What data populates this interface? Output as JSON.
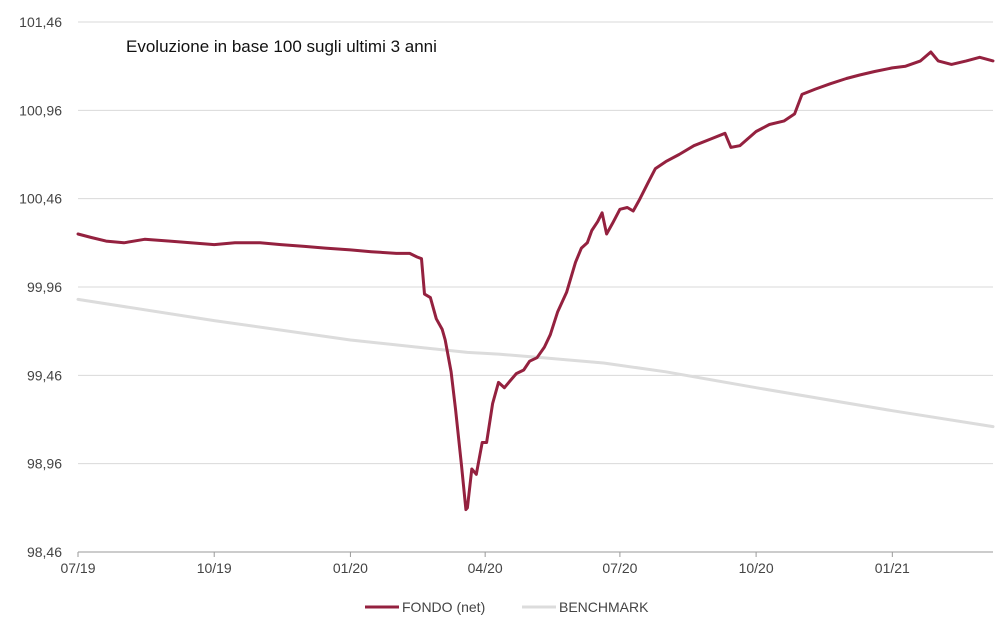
{
  "chart_data": {
    "type": "line",
    "title": "Evoluzione in base 100 sugli ultimi 3 anni",
    "xlabel": "",
    "ylabel": "",
    "x_ticks": [
      "07/19",
      "10/19",
      "01/20",
      "04/20",
      "07/20",
      "10/20",
      "01/21"
    ],
    "y_ticks": [
      "101,46",
      "100,96",
      "100,46",
      "99,96",
      "99,46",
      "98,96",
      "98,46"
    ],
    "y_tick_values": [
      101.46,
      100.96,
      100.46,
      99.96,
      99.46,
      98.96,
      98.46
    ],
    "ylim": [
      98.46,
      101.46
    ],
    "xlim": [
      "2019-07-01",
      "2021-03-10"
    ],
    "grid": "horizontal",
    "legend_position": "bottom-center",
    "series": [
      {
        "name": "FONDO (net)",
        "color": "#94213f",
        "points": [
          [
            "2019-07-01",
            100.26
          ],
          [
            "2019-07-10",
            100.24
          ],
          [
            "2019-07-20",
            100.22
          ],
          [
            "2019-08-01",
            100.21
          ],
          [
            "2019-08-15",
            100.23
          ],
          [
            "2019-09-01",
            100.22
          ],
          [
            "2019-09-15",
            100.21
          ],
          [
            "2019-10-01",
            100.2
          ],
          [
            "2019-10-15",
            100.21
          ],
          [
            "2019-11-01",
            100.21
          ],
          [
            "2019-11-15",
            100.2
          ],
          [
            "2019-12-01",
            100.19
          ],
          [
            "2019-12-15",
            100.18
          ],
          [
            "2020-01-01",
            100.17
          ],
          [
            "2020-01-15",
            100.16
          ],
          [
            "2020-02-01",
            100.15
          ],
          [
            "2020-02-10",
            100.15
          ],
          [
            "2020-02-15",
            100.13
          ],
          [
            "2020-02-18",
            100.12
          ],
          [
            "2020-02-20",
            99.92
          ],
          [
            "2020-02-24",
            99.9
          ],
          [
            "2020-02-28",
            99.78
          ],
          [
            "2020-03-03",
            99.72
          ],
          [
            "2020-03-05",
            99.66
          ],
          [
            "2020-03-09",
            99.48
          ],
          [
            "2020-03-12",
            99.27
          ],
          [
            "2020-03-16",
            98.95
          ],
          [
            "2020-03-19",
            98.7
          ],
          [
            "2020-03-20",
            98.71
          ],
          [
            "2020-03-23",
            98.93
          ],
          [
            "2020-03-26",
            98.9
          ],
          [
            "2020-03-30",
            99.08
          ],
          [
            "2020-04-02",
            99.08
          ],
          [
            "2020-04-06",
            99.3
          ],
          [
            "2020-04-10",
            99.42
          ],
          [
            "2020-04-14",
            99.39
          ],
          [
            "2020-04-17",
            99.42
          ],
          [
            "2020-04-22",
            99.47
          ],
          [
            "2020-04-27",
            99.49
          ],
          [
            "2020-05-01",
            99.54
          ],
          [
            "2020-05-06",
            99.56
          ],
          [
            "2020-05-11",
            99.62
          ],
          [
            "2020-05-15",
            99.69
          ],
          [
            "2020-05-20",
            99.82
          ],
          [
            "2020-05-26",
            99.93
          ],
          [
            "2020-06-01",
            100.1
          ],
          [
            "2020-06-05",
            100.18
          ],
          [
            "2020-06-09",
            100.21
          ],
          [
            "2020-06-12",
            100.28
          ],
          [
            "2020-06-16",
            100.33
          ],
          [
            "2020-06-19",
            100.38
          ],
          [
            "2020-06-22",
            100.26
          ],
          [
            "2020-06-26",
            100.32
          ],
          [
            "2020-07-01",
            100.4
          ],
          [
            "2020-07-06",
            100.41
          ],
          [
            "2020-07-10",
            100.39
          ],
          [
            "2020-07-14",
            100.45
          ],
          [
            "2020-07-20",
            100.55
          ],
          [
            "2020-07-25",
            100.63
          ],
          [
            "2020-08-01",
            100.67
          ],
          [
            "2020-08-10",
            100.71
          ],
          [
            "2020-08-20",
            100.76
          ],
          [
            "2020-09-01",
            100.8
          ],
          [
            "2020-09-10",
            100.83
          ],
          [
            "2020-09-14",
            100.75
          ],
          [
            "2020-09-20",
            100.76
          ],
          [
            "2020-10-01",
            100.84
          ],
          [
            "2020-10-10",
            100.88
          ],
          [
            "2020-10-20",
            100.9
          ],
          [
            "2020-10-27",
            100.94
          ],
          [
            "2020-11-01",
            101.05
          ],
          [
            "2020-11-10",
            101.08
          ],
          [
            "2020-11-20",
            101.11
          ],
          [
            "2020-12-01",
            101.14
          ],
          [
            "2020-12-10",
            101.16
          ],
          [
            "2020-12-20",
            101.18
          ],
          [
            "2021-01-01",
            101.2
          ],
          [
            "2021-01-10",
            101.21
          ],
          [
            "2021-01-20",
            101.24
          ],
          [
            "2021-01-27",
            101.29
          ],
          [
            "2021-02-01",
            101.24
          ],
          [
            "2021-02-10",
            101.22
          ],
          [
            "2021-02-20",
            101.24
          ],
          [
            "2021-03-01",
            101.26
          ],
          [
            "2021-03-10",
            101.24
          ]
        ]
      },
      {
        "name": "BENCHMARK",
        "color": "#dcdcdc",
        "points": [
          [
            "2019-07-01",
            99.89
          ],
          [
            "2019-10-01",
            99.77
          ],
          [
            "2020-01-01",
            99.66
          ],
          [
            "2020-02-15",
            99.62
          ],
          [
            "2020-03-20",
            99.59
          ],
          [
            "2020-04-10",
            99.58
          ],
          [
            "2020-05-10",
            99.56
          ],
          [
            "2020-06-20",
            99.53
          ],
          [
            "2020-08-01",
            99.48
          ],
          [
            "2020-10-01",
            99.39
          ],
          [
            "2021-01-01",
            99.26
          ],
          [
            "2021-03-10",
            99.17
          ]
        ]
      }
    ]
  }
}
